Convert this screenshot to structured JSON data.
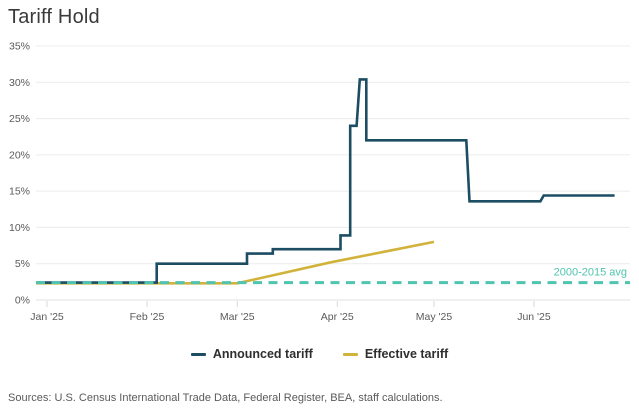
{
  "title": "Tariff Hold",
  "footer": "Sources: U.S. Census International Trade Data, Federal Register, BEA, staff calculations.",
  "colors": {
    "announced": "#1c4d63",
    "effective": "#d1b33c",
    "avg_line": "#4fc4ae",
    "grid": "#ececec",
    "axis_line": "#e0e0e0",
    "tick_mark": "#d8d8d8",
    "axis_text": "#5a5a5a",
    "title_text": "#3a3a3a",
    "legend_text": "#2e2e2e",
    "footer_text": "#5a5a5b",
    "background": "#ffffff"
  },
  "chart_data": {
    "type": "line",
    "title": "Tariff Hold",
    "xlabel": "",
    "ylabel": "",
    "ylim": [
      0,
      35
    ],
    "grid": "horizontal",
    "legend_position": "bottom-center",
    "yticks": [
      "0%",
      "5%",
      "10%",
      "15%",
      "20%",
      "25%",
      "30%",
      "35%"
    ],
    "xticks": [
      {
        "label": "Jan '25",
        "date": "2025-01-01"
      },
      {
        "label": "Feb '25",
        "date": "2025-02-01"
      },
      {
        "label": "Mar '25",
        "date": "2025-03-01"
      },
      {
        "label": "Apr '25",
        "date": "2025-04-01"
      },
      {
        "label": "May '25",
        "date": "2025-05-01"
      },
      {
        "label": "Jun '25",
        "date": "2025-06-01"
      }
    ],
    "avg_line": {
      "label": "2000-2015 avg",
      "value": 2.4,
      "style": "dashed",
      "color": "#4fc4ae"
    },
    "series": [
      {
        "name": "Announced tariff",
        "color": "#1c4d63",
        "style": "solid-step",
        "points": [
          [
            "2024-12-28",
            2.4
          ],
          [
            "2025-02-04",
            2.4
          ],
          [
            "2025-02-04",
            5.0
          ],
          [
            "2025-03-04",
            5.0
          ],
          [
            "2025-03-04",
            6.4
          ],
          [
            "2025-03-12",
            6.4
          ],
          [
            "2025-03-12",
            7.0
          ],
          [
            "2025-04-02",
            7.0
          ],
          [
            "2025-04-02",
            8.9
          ],
          [
            "2025-04-05",
            8.9
          ],
          [
            "2025-04-05",
            24.0
          ],
          [
            "2025-04-07",
            24.0
          ],
          [
            "2025-04-08",
            30.4
          ],
          [
            "2025-04-10",
            30.4
          ],
          [
            "2025-04-10",
            22.0
          ],
          [
            "2025-05-11",
            22.0
          ],
          [
            "2025-05-12",
            13.6
          ],
          [
            "2025-06-03",
            13.6
          ],
          [
            "2025-06-04",
            14.4
          ],
          [
            "2025-06-26",
            14.4
          ]
        ]
      },
      {
        "name": "Effective tariff",
        "color": "#d1b33c",
        "style": "solid",
        "points": [
          [
            "2024-12-28",
            2.3
          ],
          [
            "2025-03-01",
            2.3
          ],
          [
            "2025-03-30",
            5.2
          ],
          [
            "2025-05-01",
            8.0
          ]
        ]
      }
    ]
  },
  "legend": {
    "items": [
      "Announced tariff",
      "Effective tariff"
    ]
  }
}
